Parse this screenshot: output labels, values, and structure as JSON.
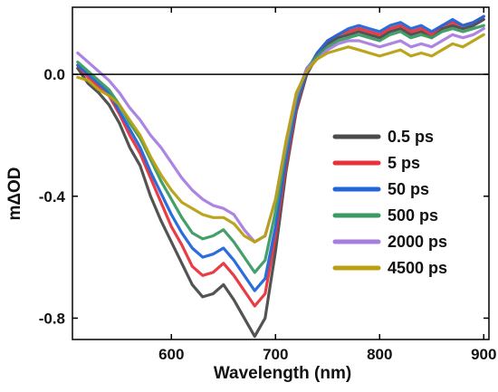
{
  "chart_data": {
    "type": "line",
    "xlabel": "Wavelength (nm)",
    "ylabel": "mΔOD",
    "xlim": [
      505,
      905
    ],
    "ylim": [
      -0.87,
      0.22
    ],
    "xticks": [
      {
        "value": 600,
        "label": "600"
      },
      {
        "value": 700,
        "label": "700"
      },
      {
        "value": 800,
        "label": "800"
      },
      {
        "value": 900,
        "label": "900"
      }
    ],
    "yticks": [
      {
        "value": 0.0,
        "label": "0.0"
      },
      {
        "value": -0.4,
        "label": "-0.4"
      },
      {
        "value": -0.8,
        "label": "-0.8"
      }
    ],
    "reference_line_y": 0.0,
    "legend_position": "center-right",
    "x": [
      510,
      520,
      530,
      540,
      550,
      560,
      570,
      580,
      590,
      600,
      610,
      620,
      630,
      640,
      650,
      660,
      670,
      680,
      690,
      700,
      710,
      720,
      730,
      740,
      750,
      760,
      770,
      780,
      790,
      800,
      810,
      820,
      830,
      840,
      850,
      860,
      870,
      880,
      890,
      900
    ],
    "series": [
      {
        "name": "0.5 ps",
        "color": "#4a4a4a",
        "values": [
          0.02,
          -0.03,
          -0.06,
          -0.1,
          -0.16,
          -0.24,
          -0.3,
          -0.4,
          -0.48,
          -0.55,
          -0.62,
          -0.69,
          -0.73,
          -0.72,
          -0.69,
          -0.74,
          -0.8,
          -0.86,
          -0.8,
          -0.58,
          -0.32,
          -0.12,
          0.0,
          0.06,
          0.1,
          0.12,
          0.13,
          0.14,
          0.13,
          0.12,
          0.14,
          0.15,
          0.13,
          0.14,
          0.12,
          0.15,
          0.16,
          0.15,
          0.16,
          0.18
        ]
      },
      {
        "name": "5 ps",
        "color": "#e8313a",
        "values": [
          0.03,
          -0.01,
          -0.04,
          -0.07,
          -0.13,
          -0.2,
          -0.26,
          -0.34,
          -0.42,
          -0.5,
          -0.56,
          -0.63,
          -0.66,
          -0.65,
          -0.62,
          -0.66,
          -0.71,
          -0.76,
          -0.72,
          -0.53,
          -0.3,
          -0.11,
          0.01,
          0.07,
          0.11,
          0.13,
          0.14,
          0.15,
          0.14,
          0.13,
          0.15,
          0.16,
          0.14,
          0.15,
          0.13,
          0.16,
          0.17,
          0.16,
          0.17,
          0.19
        ]
      },
      {
        "name": "50 ps",
        "color": "#2165d9",
        "values": [
          0.03,
          0.0,
          -0.03,
          -0.06,
          -0.12,
          -0.18,
          -0.24,
          -0.32,
          -0.39,
          -0.46,
          -0.52,
          -0.57,
          -0.6,
          -0.59,
          -0.57,
          -0.61,
          -0.66,
          -0.71,
          -0.67,
          -0.5,
          -0.28,
          -0.1,
          0.01,
          0.07,
          0.11,
          0.13,
          0.15,
          0.16,
          0.15,
          0.14,
          0.16,
          0.17,
          0.15,
          0.16,
          0.14,
          0.16,
          0.18,
          0.16,
          0.17,
          0.19
        ]
      },
      {
        "name": "500 ps",
        "color": "#3b9a63",
        "values": [
          0.04,
          0.01,
          -0.02,
          -0.05,
          -0.1,
          -0.16,
          -0.21,
          -0.28,
          -0.35,
          -0.41,
          -0.47,
          -0.52,
          -0.54,
          -0.53,
          -0.51,
          -0.55,
          -0.6,
          -0.65,
          -0.61,
          -0.45,
          -0.25,
          -0.08,
          0.02,
          0.06,
          0.09,
          0.11,
          0.12,
          0.13,
          0.12,
          0.11,
          0.13,
          0.14,
          0.12,
          0.13,
          0.12,
          0.14,
          0.15,
          0.14,
          0.15,
          0.16
        ]
      },
      {
        "name": "2000 ps",
        "color": "#a87de0",
        "values": [
          0.07,
          0.04,
          0.01,
          -0.02,
          -0.06,
          -0.11,
          -0.15,
          -0.2,
          -0.24,
          -0.29,
          -0.34,
          -0.38,
          -0.41,
          -0.43,
          -0.44,
          -0.46,
          -0.51,
          -0.55,
          -0.53,
          -0.41,
          -0.23,
          -0.07,
          0.02,
          0.05,
          0.08,
          0.1,
          0.11,
          0.11,
          0.1,
          0.09,
          0.1,
          0.11,
          0.09,
          0.1,
          0.09,
          0.11,
          0.13,
          0.12,
          0.13,
          0.15
        ]
      },
      {
        "name": "4500 ps",
        "color": "#b8a012",
        "values": [
          -0.01,
          -0.02,
          -0.05,
          -0.07,
          -0.1,
          -0.15,
          -0.2,
          -0.27,
          -0.33,
          -0.38,
          -0.42,
          -0.44,
          -0.46,
          -0.47,
          -0.47,
          -0.49,
          -0.53,
          -0.55,
          -0.53,
          -0.41,
          -0.22,
          -0.06,
          0.01,
          0.05,
          0.07,
          0.08,
          0.09,
          0.08,
          0.07,
          0.06,
          0.07,
          0.08,
          0.06,
          0.07,
          0.06,
          0.08,
          0.1,
          0.09,
          0.11,
          0.13
        ]
      }
    ]
  }
}
